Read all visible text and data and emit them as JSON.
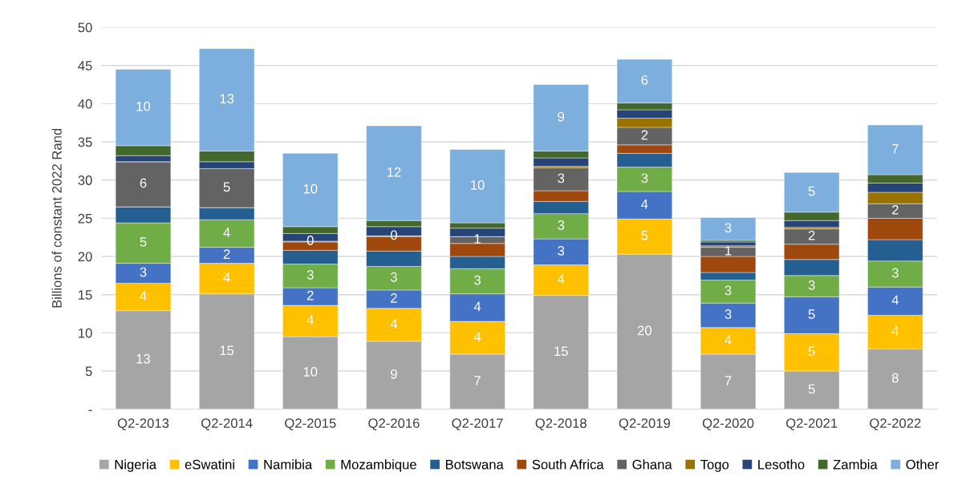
{
  "chart_data": {
    "type": "bar",
    "stacked": true,
    "ylabel": "Billions of constant 2022 Rand",
    "categories": [
      "Q2-2013",
      "Q2-2014",
      "Q2-2015",
      "Q2-2016",
      "Q2-2017",
      "Q2-2018",
      "Q2-2019",
      "Q2-2020",
      "Q2-2021",
      "Q2-2022"
    ],
    "series": [
      {
        "name": "Nigeria",
        "color": "#a5a5a5",
        "values": [
          12.9,
          15.1,
          9.5,
          8.9,
          7.2,
          14.9,
          20.3,
          7.2,
          5.0,
          7.9
        ],
        "value_labels": [
          "13",
          "15",
          "10",
          "9",
          "7",
          "15",
          "20",
          "7",
          "5",
          "8"
        ]
      },
      {
        "name": "eSwatini",
        "color": "#ffc000",
        "values": [
          3.6,
          4.0,
          4.1,
          4.3,
          4.3,
          4.0,
          4.6,
          3.5,
          4.9,
          4.4
        ],
        "value_labels": [
          "4",
          "4",
          "4",
          "4",
          "4",
          "4",
          "5",
          "4",
          "5",
          "4"
        ]
      },
      {
        "name": "Namibia",
        "color": "#4472c4",
        "values": [
          2.6,
          2.1,
          2.3,
          2.4,
          3.6,
          3.4,
          3.6,
          3.2,
          4.8,
          3.7
        ],
        "value_labels": [
          "3",
          "2",
          "2",
          "2",
          "4",
          "3",
          "4",
          "3",
          "5",
          "4"
        ]
      },
      {
        "name": "Mozambique",
        "color": "#70ad47",
        "values": [
          5.3,
          3.6,
          3.1,
          3.1,
          3.3,
          3.3,
          3.2,
          3.0,
          2.8,
          3.4
        ],
        "value_labels": [
          "5",
          "4",
          "3",
          "3",
          "3",
          "3",
          "3",
          "3",
          "3",
          "3"
        ]
      },
      {
        "name": "Botswana",
        "color": "#255e91",
        "values": [
          2.1,
          1.6,
          1.8,
          2.0,
          1.6,
          1.6,
          1.8,
          1.0,
          2.1,
          2.8
        ]
      },
      {
        "name": "South Africa",
        "color": "#9e480e",
        "values": [
          0,
          0,
          1.1,
          1.9,
          1.7,
          1.4,
          1.1,
          2.1,
          2.0,
          2.8
        ]
      },
      {
        "name": "Ghana",
        "color": "#636363",
        "values": [
          5.9,
          5.1,
          0.1,
          0.1,
          0.9,
          3.0,
          2.3,
          1.2,
          2.0,
          1.9
        ],
        "value_labels": [
          "6",
          "5",
          "0",
          "0",
          "1",
          "3",
          "2",
          "1",
          "2",
          "2"
        ]
      },
      {
        "name": "Togo",
        "color": "#997300",
        "values": [
          0,
          0,
          0,
          0,
          0,
          0.2,
          1.2,
          0.2,
          0.2,
          1.5
        ]
      },
      {
        "name": "Lesotho",
        "color": "#264478",
        "values": [
          0.8,
          0.9,
          1.0,
          1.2,
          1.1,
          1.1,
          1.1,
          0.5,
          0.9,
          1.2
        ]
      },
      {
        "name": "Zambia",
        "color": "#43682b",
        "values": [
          1.3,
          1.4,
          0.9,
          0.8,
          0.7,
          0.9,
          0.9,
          0.2,
          1.1,
          1.1
        ]
      },
      {
        "name": "Other",
        "color": "#7cafdd",
        "values": [
          10.0,
          13.4,
          9.6,
          12.4,
          9.6,
          8.7,
          5.7,
          3.0,
          5.2,
          6.5
        ],
        "value_labels": [
          "10",
          "13",
          "10",
          "12",
          "10",
          "9",
          "6",
          "3",
          "5",
          "7"
        ]
      }
    ],
    "ylim": [
      0,
      50
    ],
    "yticks": [
      {
        "value": 0,
        "label": "-"
      },
      5,
      10,
      15,
      20,
      25,
      30,
      35,
      40,
      45,
      50
    ],
    "grid": "y",
    "legend": "bottom"
  }
}
